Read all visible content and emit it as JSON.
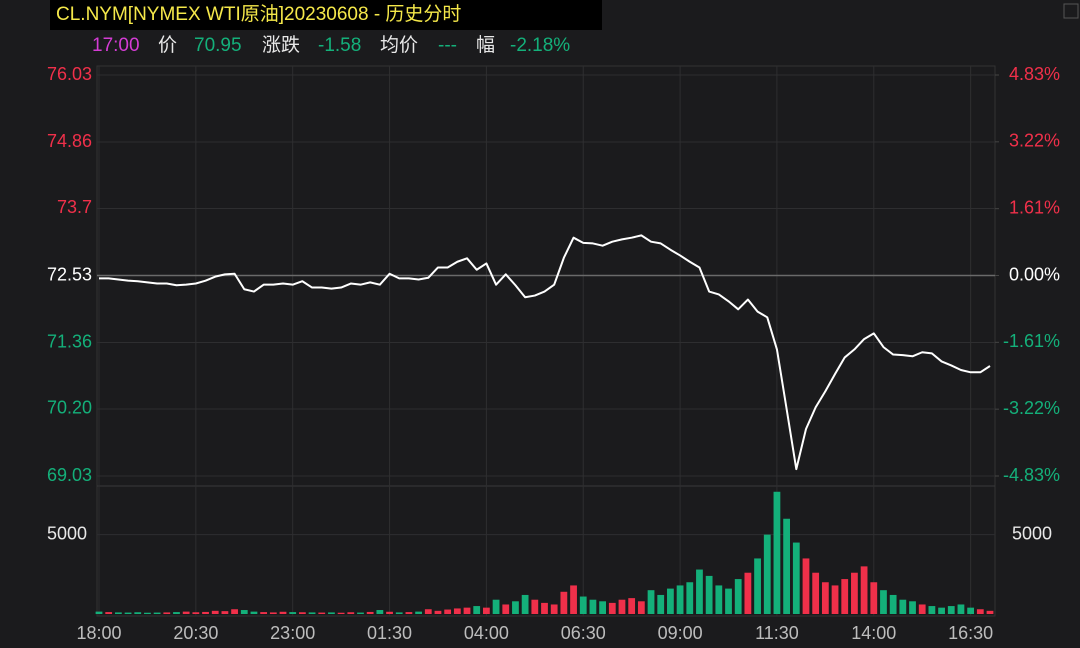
{
  "header": {
    "title": "CL.NYM[NYMEX WTI原油]20230608 - 历史分时",
    "time": "17:00",
    "price_label": "价",
    "price": "70.95",
    "change_label": "涨跌",
    "change": "-1.58",
    "avg_label": "均价",
    "avg": "---",
    "pct_label": "幅",
    "pct": "-2.18%"
  },
  "chart_data": [
    {
      "type": "line",
      "x": [
        "18:00",
        "18:15",
        "18:30",
        "18:45",
        "19:00",
        "19:15",
        "19:30",
        "19:45",
        "20:00",
        "20:15",
        "20:30",
        "20:45",
        "21:00",
        "21:15",
        "21:30",
        "21:45",
        "22:00",
        "22:15",
        "22:30",
        "22:45",
        "23:00",
        "23:15",
        "23:30",
        "23:45",
        "00:00",
        "00:15",
        "00:30",
        "00:45",
        "01:00",
        "01:15",
        "01:30",
        "01:45",
        "02:00",
        "02:15",
        "02:30",
        "02:45",
        "03:00",
        "03:15",
        "03:30",
        "03:45",
        "04:00",
        "04:15",
        "04:30",
        "04:45",
        "05:00",
        "05:15",
        "05:30",
        "05:45",
        "06:00",
        "06:15",
        "06:30",
        "06:45",
        "07:00",
        "07:15",
        "07:30",
        "07:45",
        "08:00",
        "08:15",
        "08:30",
        "08:45",
        "09:00",
        "09:15",
        "09:30",
        "09:45",
        "10:00",
        "10:15",
        "10:30",
        "10:45",
        "11:00",
        "11:15",
        "11:30",
        "11:45",
        "12:00",
        "12:15",
        "12:30",
        "12:45",
        "13:00",
        "13:15",
        "13:30",
        "13:45",
        "14:00",
        "14:15",
        "14:30",
        "14:45",
        "15:00",
        "15:15",
        "15:30",
        "15:45",
        "16:00",
        "16:15",
        "16:30",
        "16:45",
        "17:00"
      ],
      "series": [
        {
          "color": "#ffffff",
          "values": [
            72.48,
            72.48,
            72.46,
            72.44,
            72.43,
            72.41,
            72.39,
            72.39,
            72.36,
            72.37,
            72.39,
            72.44,
            72.51,
            72.55,
            72.56,
            72.29,
            72.25,
            72.37,
            72.37,
            72.39,
            72.37,
            72.43,
            72.32,
            72.32,
            72.3,
            72.32,
            72.39,
            72.37,
            72.41,
            72.37,
            72.56,
            72.48,
            72.48,
            72.46,
            72.49,
            72.67,
            72.67,
            72.77,
            72.83,
            72.63,
            72.74,
            72.37,
            72.55,
            72.36,
            72.15,
            72.18,
            72.25,
            72.37,
            72.84,
            73.19,
            73.1,
            73.09,
            73.05,
            73.12,
            73.16,
            73.19,
            73.23,
            73.12,
            73.09,
            72.98,
            72.88,
            72.77,
            72.67,
            72.25,
            72.2,
            72.08,
            71.94,
            72.11,
            71.9,
            71.8,
            71.24,
            70.2,
            69.15,
            69.85,
            70.23,
            70.51,
            70.81,
            71.1,
            71.24,
            71.42,
            71.52,
            71.28,
            71.15,
            71.14,
            71.12,
            71.19,
            71.17,
            71.03,
            70.96,
            70.88,
            70.84,
            70.84,
            70.95
          ]
        }
      ],
      "base_price": 72.53,
      "ylim": [
        69.03,
        76.03
      ],
      "yticks": [
        76.03,
        74.86,
        73.7,
        72.53,
        71.36,
        {
          "value": 70.2,
          "label": "70.20"
        },
        69.03
      ],
      "y2lim": [
        -4.83,
        4.83
      ],
      "y2ticks": [
        {
          "value": 4.83,
          "label": "4.83%"
        },
        {
          "value": 3.22,
          "label": "3.22%"
        },
        {
          "value": 1.61,
          "label": "1.61%"
        },
        {
          "value": 0,
          "label": "0.00%"
        },
        {
          "value": -1.61,
          "label": "-1.61%"
        },
        {
          "value": -3.22,
          "label": "-3.22%"
        },
        {
          "value": -4.83,
          "label": "-4.83%"
        }
      ],
      "up_color": "#f0304a",
      "down_color": "#14b07a",
      "flat_color": "#ffffff",
      "grid": true
    },
    {
      "type": "bar",
      "values": [
        150,
        120,
        100,
        90,
        110,
        80,
        90,
        100,
        120,
        150,
        110,
        130,
        200,
        180,
        300,
        250,
        150,
        120,
        100,
        140,
        120,
        110,
        100,
        90,
        100,
        80,
        110,
        90,
        130,
        250,
        140,
        100,
        120,
        150,
        300,
        200,
        280,
        350,
        400,
        500,
        400,
        900,
        600,
        800,
        1200,
        900,
        700,
        600,
        1400,
        1800,
        1100,
        900,
        800,
        700,
        900,
        1000,
        800,
        1500,
        1200,
        1600,
        1800,
        2000,
        2800,
        2400,
        1800,
        1600,
        2200,
        2600,
        3500,
        5000,
        7700,
        6000,
        4500,
        3500,
        2600,
        2000,
        1800,
        2200,
        2600,
        3000,
        2000,
        1500,
        1200,
        900,
        800,
        600,
        500,
        400,
        500,
        600,
        400,
        300,
        200
      ],
      "ylim": [
        0,
        8000
      ],
      "yticks": [
        5000
      ],
      "xticks": [
        "18:00",
        "20:30",
        "23:00",
        "01:30",
        "04:00",
        "06:30",
        "09:00",
        "11:30",
        "14:00",
        "16:30"
      ],
      "up_color": "#f0304a",
      "down_color": "#14b07a",
      "grid": true
    }
  ]
}
